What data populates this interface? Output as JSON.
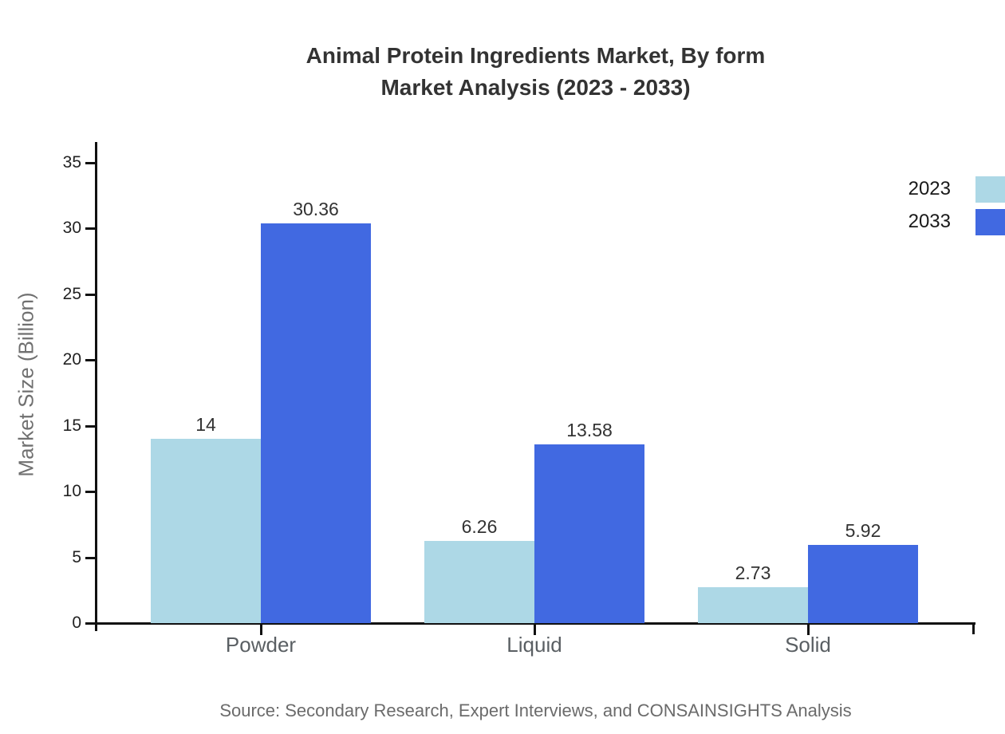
{
  "title": {
    "line1": "Animal Protein Ingredients Market, By form",
    "line2": "Market Analysis (2023 - 2033)"
  },
  "source": "Source: Secondary Research, Expert Interviews, and CONSAINSIGHTS Analysis",
  "colors": {
    "series_2023": "#ADD8E6",
    "series_2033": "#4169E1",
    "axis": "#111111",
    "title_text": "#333333",
    "category_text": "#5a5f63",
    "muted_text": "#6b6b6b"
  },
  "chart_data": {
    "type": "bar",
    "title": "Animal Protein Ingredients Market, By form Market Analysis (2023 - 2033)",
    "categories": [
      "Powder",
      "Liquid",
      "Solid"
    ],
    "series": [
      {
        "name": "2023",
        "color": "#ADD8E6",
        "values": [
          14,
          6.26,
          2.73
        ]
      },
      {
        "name": "2033",
        "color": "#4169E1",
        "values": [
          30.36,
          13.58,
          5.92
        ]
      }
    ],
    "value_labels": [
      [
        "14",
        "6.26",
        "2.73"
      ],
      [
        "30.36",
        "13.58",
        "5.92"
      ]
    ],
    "xlabel": "",
    "ylabel": "Market Size (Billion)",
    "ylim": [
      0,
      35
    ],
    "yticks": [
      0,
      5,
      10,
      15,
      20,
      25,
      30,
      35
    ],
    "grid": false,
    "legend_position": "top-right",
    "bar_orientation": "vertical"
  }
}
